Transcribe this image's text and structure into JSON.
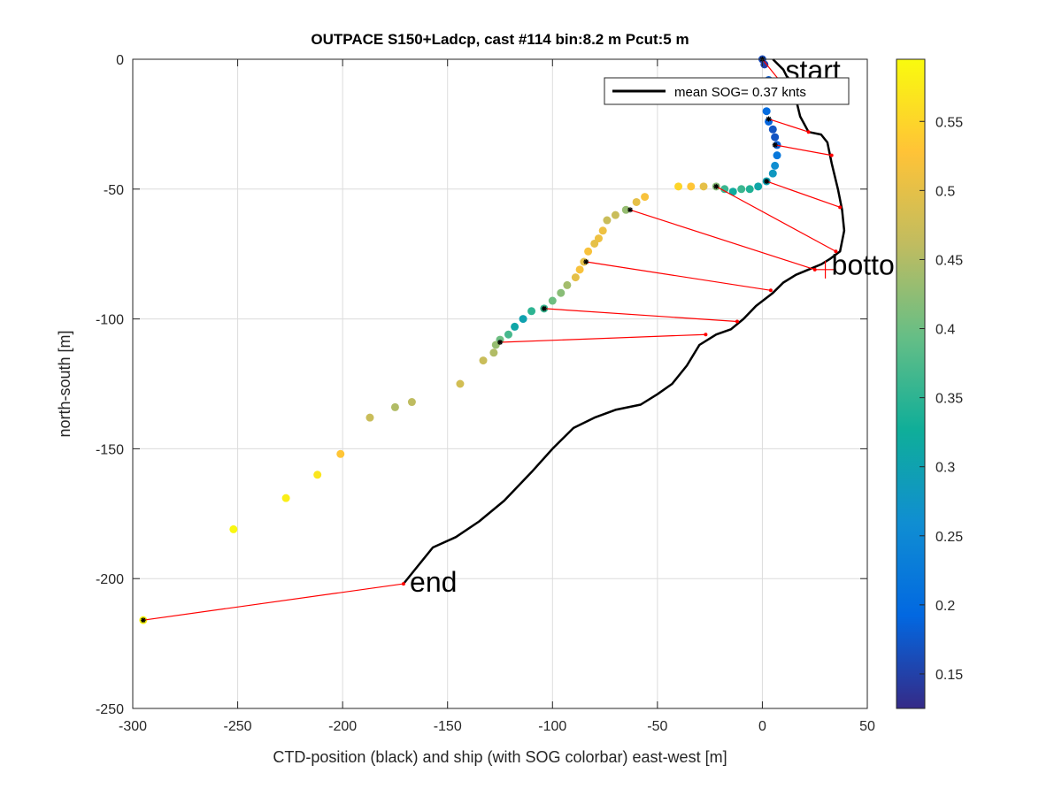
{
  "chart_data": {
    "type": "scatter",
    "title": "OUTPACE S150+Ladcp, cast #114 bin:8.2 m  Pcut:5 m",
    "xlabel": "CTD-position (black) and ship (with SOG colorbar) east-west [m]",
    "ylabel": "north-south [m]",
    "xlim": [
      -300,
      50
    ],
    "ylim": [
      -250,
      0
    ],
    "xticks": [
      -300,
      -250,
      -200,
      -150,
      -100,
      -50,
      0,
      50
    ],
    "yticks": [
      0,
      -50,
      -100,
      -150,
      -200,
      -250
    ],
    "grid": true,
    "legend": {
      "placement": "top-right",
      "entries": [
        "mean SOG=  0.37 knts"
      ]
    },
    "colorbar": {
      "ticks": [
        "0.15",
        "0.2",
        "0.25",
        "0.3",
        "0.35",
        "0.4",
        "0.45",
        "0.5",
        "0.55"
      ],
      "range": [
        0.125,
        0.595
      ],
      "colormap": [
        "#352a87",
        "#0268e1",
        "#108ed2",
        "#0fae99",
        "#65be86",
        "#c0bc60",
        "#ffc337",
        "#f9fb0e"
      ]
    },
    "annotations": [
      {
        "text": "start",
        "x": 11,
        "y": -8
      },
      {
        "text": "bottom",
        "x": 33,
        "y": -83
      },
      {
        "text": "end",
        "x": -168,
        "y": -205
      }
    ],
    "ctd_track": {
      "color": "#000000",
      "points": [
        [
          5,
          0
        ],
        [
          10,
          -4
        ],
        [
          15,
          -12
        ],
        [
          18,
          -22
        ],
        [
          22,
          -28
        ],
        [
          28,
          -29
        ],
        [
          31,
          -32
        ],
        [
          33,
          -40
        ],
        [
          36,
          -50
        ],
        [
          38,
          -58
        ],
        [
          39,
          -66
        ],
        [
          37,
          -74
        ],
        [
          32,
          -77
        ],
        [
          28,
          -79
        ],
        [
          22,
          -81
        ],
        [
          16,
          -83
        ],
        [
          10,
          -86
        ],
        [
          5,
          -90
        ],
        [
          -3,
          -95
        ],
        [
          -9,
          -100
        ],
        [
          -15,
          -104
        ],
        [
          -22,
          -106
        ],
        [
          -30,
          -110
        ],
        [
          -36,
          -118
        ],
        [
          -43,
          -125
        ],
        [
          -50,
          -129
        ],
        [
          -58,
          -133
        ],
        [
          -70,
          -135
        ],
        [
          -80,
          -138
        ],
        [
          -90,
          -142
        ],
        [
          -100,
          -150
        ],
        [
          -110,
          -159
        ],
        [
          -123,
          -170
        ],
        [
          -135,
          -178
        ],
        [
          -146,
          -184
        ],
        [
          -157,
          -188
        ],
        [
          -165,
          -196
        ],
        [
          -171,
          -202
        ]
      ]
    },
    "ship_points": [
      {
        "x": 0,
        "y": 0,
        "sog": 0.16
      },
      {
        "x": 1,
        "y": -2,
        "sog": 0.15
      },
      {
        "x": 3,
        "y": -8,
        "sog": 0.18
      },
      {
        "x": 3,
        "y": -12,
        "sog": 0.2
      },
      {
        "x": 3,
        "y": -16,
        "sog": 0.21
      },
      {
        "x": 2,
        "y": -20,
        "sog": 0.2
      },
      {
        "x": 3,
        "y": -24,
        "sog": 0.19
      },
      {
        "x": 5,
        "y": -27,
        "sog": 0.17
      },
      {
        "x": 6,
        "y": -30,
        "sog": 0.17
      },
      {
        "x": 7,
        "y": -33,
        "sog": 0.18
      },
      {
        "x": 7,
        "y": -37,
        "sog": 0.22
      },
      {
        "x": 6,
        "y": -41,
        "sog": 0.26
      },
      {
        "x": 5,
        "y": -44,
        "sog": 0.28
      },
      {
        "x": 2,
        "y": -47,
        "sog": 0.3
      },
      {
        "x": -2,
        "y": -49,
        "sog": 0.31
      },
      {
        "x": -6,
        "y": -50,
        "sog": 0.34
      },
      {
        "x": -10,
        "y": -50,
        "sog": 0.36
      },
      {
        "x": -14,
        "y": -51,
        "sog": 0.32
      },
      {
        "x": -18,
        "y": -50,
        "sog": 0.36
      },
      {
        "x": -22,
        "y": -49,
        "sog": 0.42
      },
      {
        "x": -28,
        "y": -49,
        "sog": 0.5
      },
      {
        "x": -34,
        "y": -49,
        "sog": 0.53
      },
      {
        "x": -40,
        "y": -49,
        "sog": 0.55
      },
      {
        "x": -56,
        "y": -53,
        "sog": 0.52
      },
      {
        "x": -60,
        "y": -55,
        "sog": 0.5
      },
      {
        "x": -65,
        "y": -58,
        "sog": 0.43
      },
      {
        "x": -70,
        "y": -60,
        "sog": 0.47
      },
      {
        "x": -74,
        "y": -62,
        "sog": 0.47
      },
      {
        "x": -76,
        "y": -66,
        "sog": 0.51
      },
      {
        "x": -78,
        "y": -69,
        "sog": 0.51
      },
      {
        "x": -80,
        "y": -71,
        "sog": 0.5
      },
      {
        "x": -83,
        "y": -74,
        "sog": 0.52
      },
      {
        "x": -85,
        "y": -78,
        "sog": 0.5
      },
      {
        "x": -87,
        "y": -81,
        "sog": 0.52
      },
      {
        "x": -89,
        "y": -84,
        "sog": 0.5
      },
      {
        "x": -93,
        "y": -87,
        "sog": 0.44
      },
      {
        "x": -96,
        "y": -90,
        "sog": 0.42
      },
      {
        "x": -100,
        "y": -93,
        "sog": 0.4
      },
      {
        "x": -104,
        "y": -96,
        "sog": 0.36
      },
      {
        "x": -110,
        "y": -97,
        "sog": 0.35
      },
      {
        "x": -114,
        "y": -100,
        "sog": 0.3
      },
      {
        "x": -118,
        "y": -103,
        "sog": 0.31
      },
      {
        "x": -121,
        "y": -106,
        "sog": 0.37
      },
      {
        "x": -125,
        "y": -108,
        "sog": 0.4
      },
      {
        "x": -127,
        "y": -110,
        "sog": 0.43
      },
      {
        "x": -128,
        "y": -113,
        "sog": 0.45
      },
      {
        "x": -133,
        "y": -116,
        "sog": 0.47
      },
      {
        "x": -144,
        "y": -125,
        "sog": 0.48
      },
      {
        "x": -167,
        "y": -132,
        "sog": 0.46
      },
      {
        "x": -175,
        "y": -134,
        "sog": 0.45
      },
      {
        "x": -187,
        "y": -138,
        "sog": 0.47
      },
      {
        "x": -201,
        "y": -152,
        "sog": 0.53
      },
      {
        "x": -212,
        "y": -160,
        "sog": 0.57
      },
      {
        "x": -227,
        "y": -169,
        "sog": 0.58
      },
      {
        "x": -252,
        "y": -181,
        "sog": 0.59
      },
      {
        "x": -295,
        "y": -216,
        "sog": 0.59
      }
    ],
    "connector_lines": {
      "color": "#ff0000",
      "segments": [
        [
          [
            0,
            0
          ],
          [
            8,
            -8
          ]
        ],
        [
          [
            3,
            -23
          ],
          [
            22,
            -28
          ]
        ],
        [
          [
            6,
            -33
          ],
          [
            33,
            -37
          ]
        ],
        [
          [
            2,
            -47
          ],
          [
            37,
            -57
          ]
        ],
        [
          [
            -22,
            -49
          ],
          [
            35,
            -74
          ]
        ],
        [
          [
            -63,
            -58
          ],
          [
            25,
            -81
          ]
        ],
        [
          [
            -84,
            -78
          ],
          [
            4,
            -89
          ]
        ],
        [
          [
            -104,
            -96
          ],
          [
            -12,
            -101
          ]
        ],
        [
          [
            -125,
            -109
          ],
          [
            -27,
            -106
          ]
        ],
        [
          [
            -295,
            -216
          ],
          [
            -171,
            -202
          ]
        ]
      ]
    }
  }
}
